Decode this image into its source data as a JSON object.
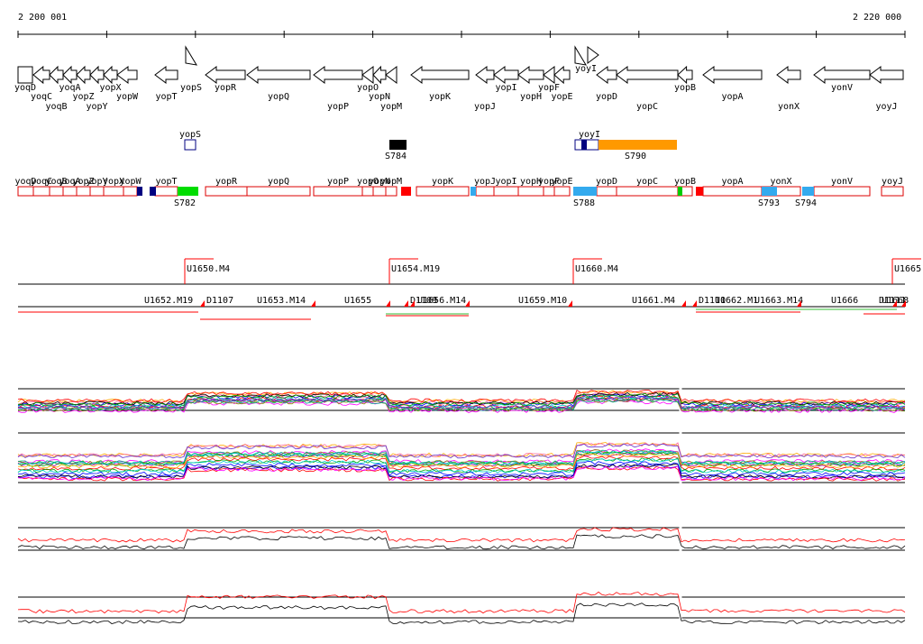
{
  "coords": {
    "start": "2 200 001",
    "end": "2 220 000"
  },
  "genes": [
    {
      "name": "yoqD",
      "dir": "box",
      "label_row": 0
    },
    {
      "name": "yoqC",
      "dir": "left",
      "label_row": 1
    },
    {
      "name": "yoqB",
      "dir": "left",
      "label_row": 2
    },
    {
      "name": "yoqA",
      "dir": "left",
      "label_row": 0
    },
    {
      "name": "yopZ",
      "dir": "left",
      "label_row": 1
    },
    {
      "name": "yopY",
      "dir": "left",
      "label_row": 2
    },
    {
      "name": "yopX",
      "dir": "left",
      "label_row": 0
    },
    {
      "name": "yopW",
      "dir": "left",
      "label_row": 1
    },
    {
      "name": "yopT",
      "dir": "left",
      "label_row": 1
    },
    {
      "name": "yopS",
      "dir": "right",
      "label_row": 0
    },
    {
      "name": "yopR",
      "dir": "left",
      "label_row": 0
    },
    {
      "name": "yopQ",
      "dir": "left",
      "label_row": 1
    },
    {
      "name": "yopP",
      "dir": "left",
      "label_row": 2
    },
    {
      "name": "yopO",
      "dir": "left",
      "label_row": 0
    },
    {
      "name": "yopN",
      "dir": "left",
      "label_row": 1
    },
    {
      "name": "yopM",
      "dir": "left",
      "label_row": 2
    },
    {
      "name": "yopK",
      "dir": "left",
      "label_row": 1
    },
    {
      "name": "yopJ",
      "dir": "left",
      "label_row": 2
    },
    {
      "name": "yopI",
      "dir": "left",
      "label_row": 0
    },
    {
      "name": "yopH",
      "dir": "left",
      "label_row": 1
    },
    {
      "name": "yopF",
      "dir": "left",
      "label_row": 0
    },
    {
      "name": "yopE",
      "dir": "left",
      "label_row": 1
    },
    {
      "name": "yoyI",
      "dir": "right",
      "label_row": 0
    },
    {
      "name": "yopD",
      "dir": "left",
      "label_row": 1
    },
    {
      "name": "yopC",
      "dir": "left",
      "label_row": 2
    },
    {
      "name": "yopB",
      "dir": "left",
      "label_row": 0
    },
    {
      "name": "yopA",
      "dir": "left",
      "label_row": 1
    },
    {
      "name": "yonX",
      "dir": "left",
      "label_row": 2
    },
    {
      "name": "yonV",
      "dir": "left",
      "label_row": 0
    },
    {
      "name": "yoyJ",
      "dir": "left",
      "label_row": 2
    }
  ],
  "small_rnas": [
    {
      "label": "S784",
      "color": "#000000"
    },
    {
      "label": "S790",
      "color": "#ff9900"
    }
  ],
  "track_gene_labels": [
    "yoqD",
    "yoqC",
    "yoqB",
    "yoqA",
    "yopZ",
    "yopY",
    "yopX",
    "yopW",
    "yopT",
    "yopR",
    "yopQ",
    "yopP",
    "yopO",
    "yopN",
    "yopM",
    "yopK",
    "yopJ",
    "yopI",
    "yopH",
    "yopF",
    "yopE",
    "yopD",
    "yopC",
    "yopB",
    "yopA",
    "yonX",
    "yonV",
    "yoyJ"
  ],
  "track_labels": [
    {
      "label": "yopS"
    },
    {
      "label": "yoyI"
    }
  ],
  "track_sites": [
    {
      "label": "S782",
      "color": "#00dd00"
    },
    {
      "label": "S788",
      "color": "#33aaee"
    },
    {
      "label": "S793",
      "color": "#33aaee"
    },
    {
      "label": "S794",
      "color": "#33aaee"
    }
  ],
  "transcripts_upper": [
    "U1650.M4",
    "U1654.M19",
    "U1660.M4",
    "U1665"
  ],
  "transcripts_lower": [
    "D1107",
    "U1652.M19",
    "U1653.M14",
    "U1655",
    "D1109",
    "U1656.M14",
    "U1659.M10",
    "U1661.M4",
    "D1110",
    "U1662.M1",
    "U1663.M14",
    "U1666",
    "D1111",
    "U1668"
  ],
  "colors": {
    "accent_red": "#ff0000",
    "orange": "#ff9900",
    "blue": "#3399ee",
    "green": "#00cc00",
    "navy": "#000080"
  }
}
